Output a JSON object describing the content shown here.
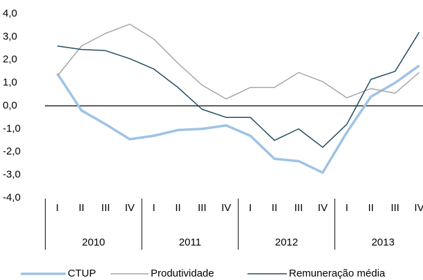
{
  "chart_data": {
    "type": "line",
    "categories": [
      "I",
      "II",
      "III",
      "IV",
      "I",
      "II",
      "III",
      "IV",
      "I",
      "II",
      "III",
      "IV",
      "I",
      "II",
      "III",
      "IV"
    ],
    "groups": [
      "2010",
      "2011",
      "2012",
      "2013"
    ],
    "series": [
      {
        "name": "CTUP",
        "color": "#9dc3e6",
        "values": [
          1.4,
          -0.2,
          -0.8,
          -1.45,
          -1.3,
          -1.05,
          -1.0,
          -0.85,
          -1.3,
          -2.3,
          -2.4,
          -2.9,
          -1.15,
          0.4,
          1.0,
          1.75
        ]
      },
      {
        "name": "Produtividade",
        "color": "#a6a6a6",
        "values": [
          1.3,
          2.6,
          3.15,
          3.55,
          2.9,
          1.85,
          0.9,
          0.3,
          0.8,
          0.8,
          1.45,
          1.05,
          0.35,
          0.75,
          0.55,
          1.45
        ]
      },
      {
        "name": "Remuneração média",
        "color": "#1f4e5f",
        "values": [
          2.6,
          2.45,
          2.4,
          2.05,
          1.6,
          0.8,
          -0.15,
          -0.5,
          -0.5,
          -1.5,
          -1.0,
          -1.8,
          -0.8,
          1.15,
          1.5,
          3.2
        ]
      }
    ],
    "ylim": [
      -4,
      4
    ],
    "yticks": [
      {
        "value": 4,
        "label": "4,0"
      },
      {
        "value": 3,
        "label": "3,0"
      },
      {
        "value": 2,
        "label": "2,0"
      },
      {
        "value": 1,
        "label": "1,0"
      },
      {
        "value": 0,
        "label": "0,0"
      },
      {
        "value": -1,
        "label": "-1,0"
      },
      {
        "value": -2,
        "label": "-2,0"
      },
      {
        "value": -3,
        "label": "-3,0"
      },
      {
        "value": -4,
        "label": "-4,0"
      }
    ],
    "grid": false
  }
}
